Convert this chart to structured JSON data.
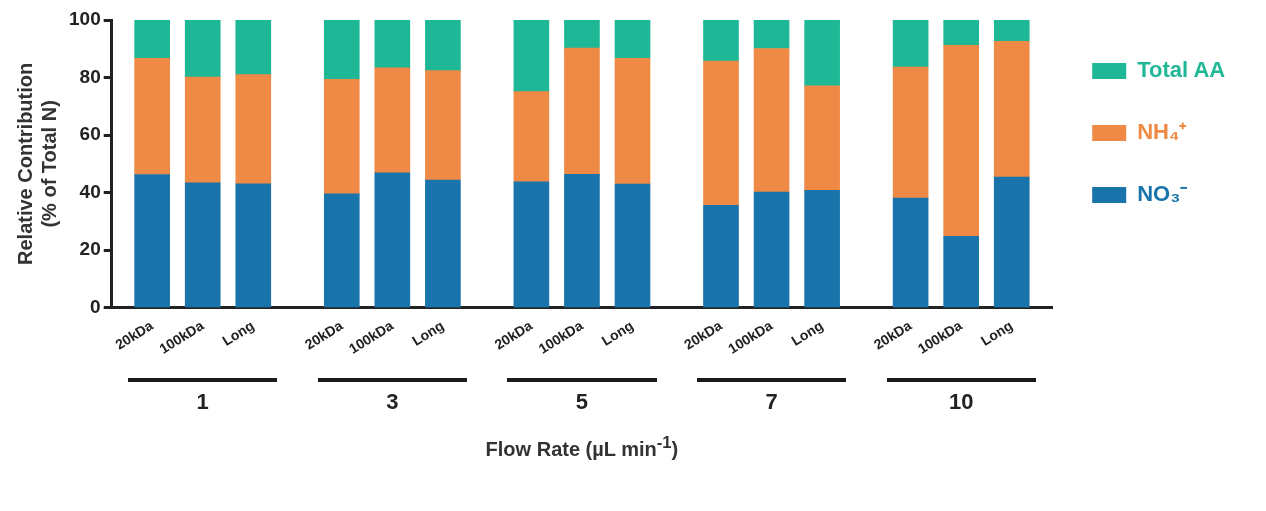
{
  "chart_data": {
    "type": "bar",
    "stacked": true,
    "categories": [
      "20kDa",
      "100kDa",
      "Long",
      "20kDa",
      "100kDa",
      "Long",
      "20kDa",
      "100kDa",
      "Long",
      "20kDa",
      "100kDa",
      "Long",
      "20kDa",
      "100kDa",
      "Long"
    ],
    "series": [
      {
        "name": "NO₃⁻",
        "color": "#1874ab",
        "values": [
          46.3,
          43.4,
          43.1,
          39.6,
          46.9,
          44.4,
          43.8,
          46.4,
          43.0,
          35.6,
          40.2,
          40.8,
          38.1,
          24.8,
          45.4
        ]
      },
      {
        "name": "NH₄⁺",
        "color": "#ee8a45",
        "values": [
          40.4,
          36.8,
          37.9,
          39.8,
          36.5,
          38.0,
          31.3,
          43.8,
          43.7,
          50.1,
          49.9,
          36.3,
          45.5,
          66.4,
          47.2
        ]
      },
      {
        "name": "Total AA",
        "color": "#1fb896",
        "values": [
          13.3,
          19.8,
          19.0,
          20.6,
          16.6,
          17.6,
          24.9,
          9.8,
          13.3,
          14.3,
          9.9,
          22.9,
          16.4,
          8.8,
          7.4
        ]
      }
    ],
    "xlabel": "Flow Rate (µL min$^{-1}$)",
    "ylabel": "Relative Contribution\n(% of Total N)",
    "ylim": [
      0,
      100
    ],
    "yticks": [
      0,
      20,
      40,
      60,
      80,
      100
    ],
    "annotations": [
      "1",
      "3",
      "5",
      "7",
      "10"
    ],
    "grid": false,
    "legend": "top right"
  }
}
